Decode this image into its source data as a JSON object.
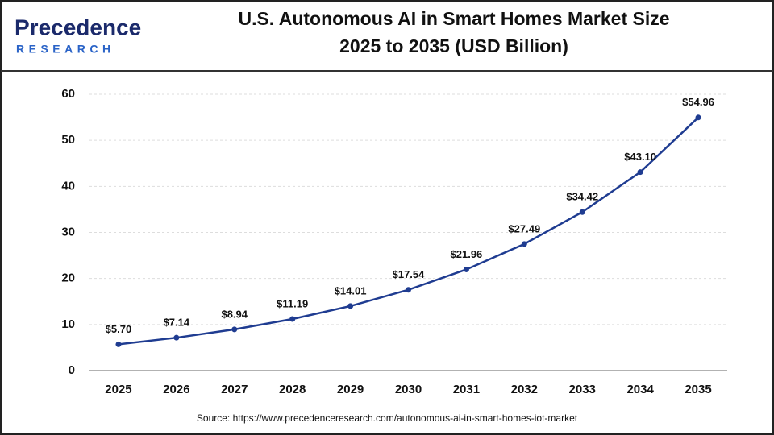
{
  "logo": {
    "name": "Precedence",
    "tagline": "RESEARCH"
  },
  "chart_data": {
    "type": "line",
    "title": "U.S. Autonomous AI in Smart Homes Market Size",
    "subtitle": "2025 to 2035 (USD Billion)",
    "categories": [
      "2025",
      "2026",
      "2027",
      "2028",
      "2029",
      "2030",
      "2031",
      "2032",
      "2033",
      "2034",
      "2035"
    ],
    "values": [
      5.7,
      7.14,
      8.94,
      11.19,
      14.01,
      17.54,
      21.96,
      27.49,
      34.42,
      43.1,
      54.96
    ],
    "value_labels": [
      "$5.70",
      "$7.14",
      "$8.94",
      "$11.19",
      "$14.01",
      "$17.54",
      "$21.96",
      "$27.49",
      "$34.42",
      "$43.10",
      "$54.96"
    ],
    "color": "#1f3c91",
    "ylim": [
      0,
      60
    ],
    "yticks": [
      0,
      10,
      20,
      30,
      40,
      50,
      60
    ],
    "grid": true,
    "source": "Source: https://www.precedenceresearch.com/autonomous-ai-in-smart-homes-iot-market"
  }
}
